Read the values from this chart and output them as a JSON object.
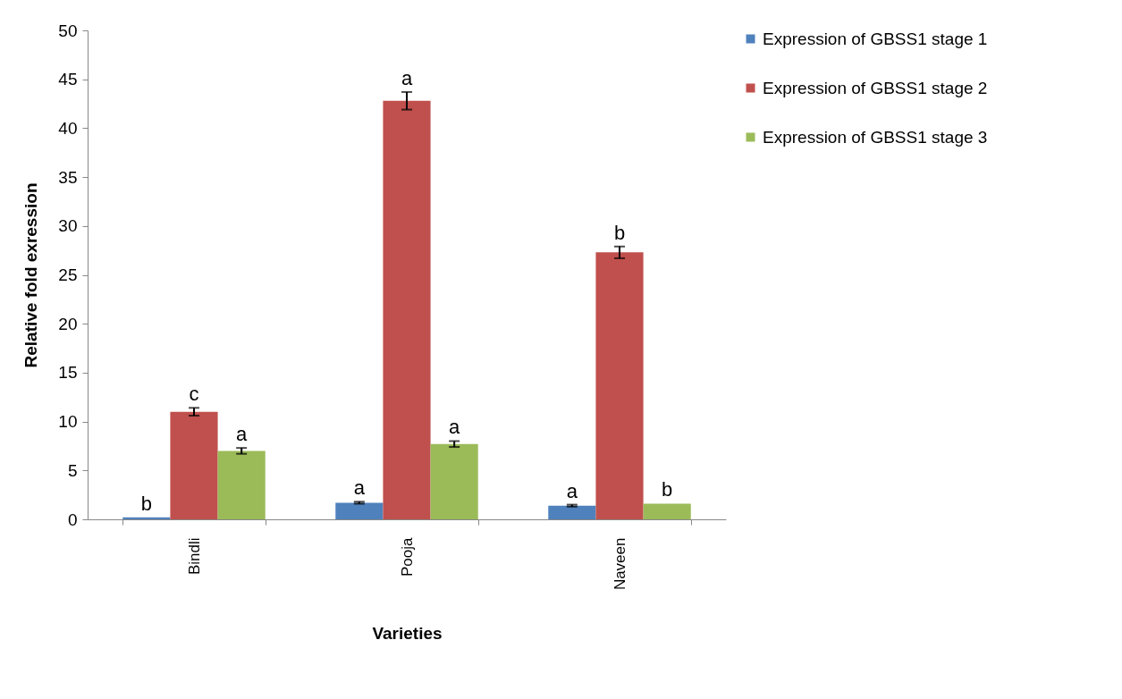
{
  "chart_data": {
    "type": "bar",
    "xlabel": "Varieties",
    "ylabel": "Relative fold exression",
    "categories": [
      "Bindli",
      "Pooja",
      "Naveen"
    ],
    "series": [
      {
        "name": "Expression of GBSS1 stage 1",
        "color": "#4f81bd",
        "values": [
          0.2,
          1.7,
          1.4
        ],
        "errors": [
          null,
          0.1,
          0.1
        ],
        "value_labels": [
          "b",
          "a",
          "a"
        ]
      },
      {
        "name": "Expression of GBSS1 stage 2",
        "color": "#c0504d",
        "values": [
          11.0,
          42.8,
          27.3
        ],
        "errors": [
          0.4,
          0.9,
          0.6
        ],
        "value_labels": [
          "c",
          "a",
          "b"
        ]
      },
      {
        "name": "Expression of GBSS1 stage 3",
        "color": "#9bbb59",
        "values": [
          7.0,
          7.7,
          1.6
        ],
        "errors": [
          0.3,
          0.3,
          null
        ],
        "value_labels": [
          "a",
          "a",
          "b"
        ]
      }
    ],
    "ylim": [
      0,
      50
    ],
    "yticks": [
      0,
      5,
      10,
      15,
      20,
      25,
      30,
      35,
      40,
      45,
      50
    ],
    "grid": false,
    "legend": "right"
  }
}
